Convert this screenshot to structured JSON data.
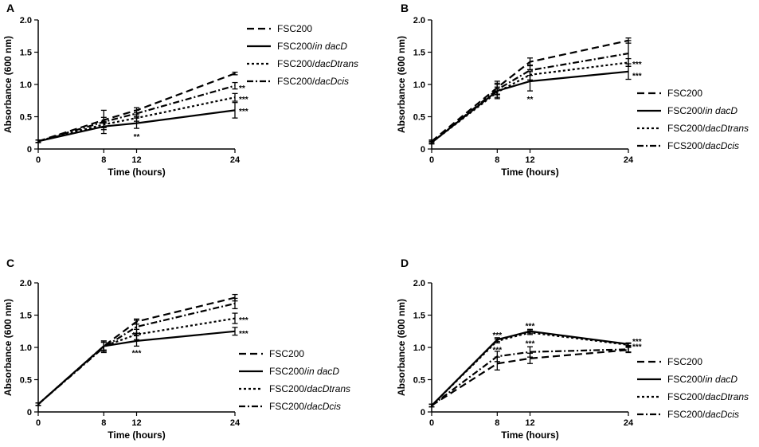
{
  "chart_data": [
    {
      "type": "line",
      "panel_label": "A",
      "xlabel": "Time (hours)",
      "ylabel": "Absorbance (600 nm)",
      "x": [
        0,
        8,
        12,
        24
      ],
      "xticks": [
        "0",
        "8",
        "12",
        "24"
      ],
      "ylim": [
        0,
        2.0
      ],
      "yticks": [
        "0",
        "0.5",
        "1.0",
        "1.5",
        "2.0"
      ],
      "legend_position": "top-right",
      "series": [
        {
          "name": "FSC200",
          "prefix": "FSC200",
          "italic": "",
          "style": "dash",
          "values": [
            0.12,
            0.45,
            0.6,
            1.17
          ],
          "err": [
            0.02,
            0.04,
            0.04,
            0.02
          ]
        },
        {
          "name": "FSC200/in dacD",
          "prefix": "FSC200/",
          "italic": "in dacD",
          "style": "solid",
          "values": [
            0.12,
            0.35,
            0.4,
            0.6
          ],
          "err": [
            0.02,
            0.05,
            0.08,
            0.12
          ]
        },
        {
          "name": "FSC200/dacDtrans",
          "prefix": "FSC200/",
          "italic": "dacDtrans",
          "style": "dot",
          "values": [
            0.12,
            0.38,
            0.48,
            0.8
          ],
          "err": [
            0.02,
            0.05,
            0.05,
            0.06
          ]
        },
        {
          "name": "FSC200/dacDcis",
          "prefix": "FSC200/",
          "italic": "dacDcis",
          "style": "dashdot",
          "values": [
            0.12,
            0.42,
            0.55,
            0.98
          ],
          "err": [
            0.02,
            0.18,
            0.05,
            0.05
          ]
        }
      ],
      "annotations": [
        {
          "text": "**",
          "x": 12,
          "y": 0.2
        },
        {
          "text": "**",
          "x": 24,
          "y": 0.95
        },
        {
          "text": "***",
          "x": 24,
          "y": 0.78
        },
        {
          "text": "***",
          "x": 24,
          "y": 0.59
        }
      ]
    },
    {
      "type": "line",
      "panel_label": "B",
      "xlabel": "Time (hours)",
      "ylabel": "Absorbance (600 nm)",
      "x": [
        0,
        8,
        12,
        24
      ],
      "xticks": [
        "0",
        "8",
        "12",
        "24"
      ],
      "ylim": [
        0,
        2.0
      ],
      "yticks": [
        "0",
        "0.5",
        "1.0",
        "1.5",
        "2.0"
      ],
      "legend_position": "bottom-right",
      "series": [
        {
          "name": "FSC200",
          "prefix": "FSC200",
          "italic": "",
          "style": "dash",
          "values": [
            0.12,
            0.95,
            1.35,
            1.68
          ],
          "err": [
            0.02,
            0.1,
            0.06,
            0.04
          ]
        },
        {
          "name": "FSC200/in dacD",
          "prefix": "FSC200/",
          "italic": "in dacD",
          "style": "solid",
          "values": [
            0.1,
            0.9,
            1.05,
            1.2
          ],
          "err": [
            0.02,
            0.12,
            0.15,
            0.12
          ]
        },
        {
          "name": "FSC200/dacDtrans",
          "prefix": "FSC200/",
          "italic": "dacDtrans",
          "style": "dot",
          "values": [
            0.1,
            0.88,
            1.15,
            1.34
          ],
          "err": [
            0.02,
            0.08,
            0.08,
            0.06
          ]
        },
        {
          "name": "FCS200/dacDcis",
          "prefix": "FCS200/",
          "italic": "dacDcis",
          "style": "dashdot",
          "values": [
            0.1,
            0.92,
            1.22,
            1.48
          ],
          "err": [
            0.02,
            0.08,
            0.08,
            0.2
          ]
        }
      ],
      "annotations": [
        {
          "text": "**",
          "x": 12,
          "y": 0.78
        },
        {
          "text": "***",
          "x": 24,
          "y": 1.32
        },
        {
          "text": "***",
          "x": 24,
          "y": 1.14
        }
      ]
    },
    {
      "type": "line",
      "panel_label": "C",
      "xlabel": "Time (hours)",
      "ylabel": "Absorbance (600 nm)",
      "x": [
        0,
        8,
        12,
        24
      ],
      "xticks": [
        "0",
        "8",
        "12",
        "24"
      ],
      "ylim": [
        0,
        2.0
      ],
      "yticks": [
        "0",
        "0.5",
        "1.0",
        "1.5",
        "2.0"
      ],
      "legend_position": "bottom-right",
      "series": [
        {
          "name": "FSC200",
          "prefix": "FSC200",
          "italic": "",
          "style": "dash",
          "values": [
            0.12,
            1.02,
            1.4,
            1.77
          ],
          "err": [
            0.02,
            0.06,
            0.04,
            0.05
          ]
        },
        {
          "name": "FSC200/in dacD",
          "prefix": "FSC200/",
          "italic": "in dacD",
          "style": "solid",
          "values": [
            0.12,
            1.02,
            1.1,
            1.25
          ],
          "err": [
            0.02,
            0.08,
            0.08,
            0.06
          ]
        },
        {
          "name": "FSC200/dacDtrans",
          "prefix": "FSC200/",
          "italic": "dacDtrans",
          "style": "dot",
          "values": [
            0.12,
            1.02,
            1.2,
            1.45
          ],
          "err": [
            0.02,
            0.08,
            0.08,
            0.08
          ]
        },
        {
          "name": "FSC200/dacDcis",
          "prefix": "FSC200/",
          "italic": "dacDcis",
          "style": "dashdot",
          "values": [
            0.12,
            1.0,
            1.32,
            1.68
          ],
          "err": [
            0.02,
            0.08,
            0.1,
            0.08
          ]
        }
      ],
      "annotations": [
        {
          "text": "***",
          "x": 12,
          "y": 1.2
        },
        {
          "text": "***",
          "x": 12,
          "y": 0.92
        },
        {
          "text": "***",
          "x": 24,
          "y": 1.43
        },
        {
          "text": "***",
          "x": 24,
          "y": 1.22
        }
      ]
    },
    {
      "type": "line",
      "panel_label": "D",
      "xlabel": "Time (hours)",
      "ylabel": "Absorbance (600 nm)",
      "x": [
        0,
        8,
        12,
        24
      ],
      "xticks": [
        "0",
        "8",
        "12",
        "24"
      ],
      "ylim": [
        0,
        2.0
      ],
      "yticks": [
        "0",
        "0.5",
        "1.0",
        "1.5",
        "2.0"
      ],
      "legend_position": "bottom-right",
      "series": [
        {
          "name": "FSC200",
          "prefix": "FSC200",
          "italic": "",
          "style": "dash",
          "values": [
            0.1,
            0.75,
            0.83,
            0.96
          ],
          "err": [
            0.02,
            0.1,
            0.08,
            0.04
          ]
        },
        {
          "name": "FSC200/in dacD",
          "prefix": "FSC200/",
          "italic": "in dacD",
          "style": "solid",
          "values": [
            0.1,
            1.12,
            1.25,
            1.05
          ],
          "err": [
            0.02,
            0.03,
            0.03,
            0.02
          ]
        },
        {
          "name": "FSC200/dacDtrans",
          "prefix": "FSC200/",
          "italic": "dacDtrans",
          "style": "dot",
          "values": [
            0.1,
            1.1,
            1.23,
            1.04
          ],
          "err": [
            0.02,
            0.03,
            0.03,
            0.02
          ]
        },
        {
          "name": "FSC200/dacDcis",
          "prefix": "FSC200/",
          "italic": "dacDcis",
          "style": "dashdot",
          "values": [
            0.1,
            0.86,
            0.93,
            0.97
          ],
          "err": [
            0.02,
            0.08,
            0.08,
            0.04
          ]
        }
      ],
      "annotations": [
        {
          "text": "***",
          "x": 8,
          "y": 1.2
        },
        {
          "text": "***",
          "x": 8,
          "y": 0.97
        },
        {
          "text": "***",
          "x": 12,
          "y": 1.34
        },
        {
          "text": "***",
          "x": 12,
          "y": 1.07
        },
        {
          "text": "***",
          "x": 24,
          "y": 1.1
        },
        {
          "text": "***",
          "x": 24,
          "y": 1.02
        }
      ]
    }
  ]
}
